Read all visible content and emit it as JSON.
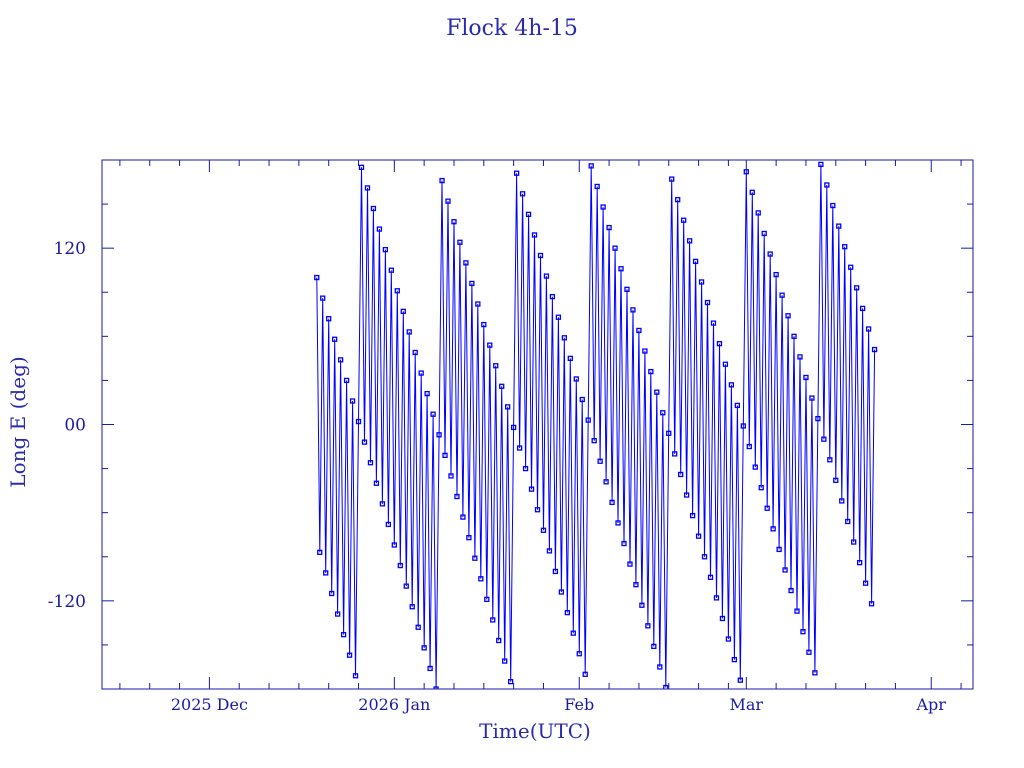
{
  "chart_data": {
    "type": "line",
    "title": "Flock 4h-15",
    "xlabel": "Time(UTC)",
    "ylabel": "Long E (deg)",
    "xlim": [
      "2025-11-13",
      "2026-04-08"
    ],
    "ylim": [
      -180,
      180
    ],
    "grid": false,
    "legend": "none",
    "markers": "square",
    "color": "#0000ff",
    "axis_color": "#1a1aa6",
    "y_ticks": [
      {
        "value": 120,
        "label": "120"
      },
      {
        "value": 0,
        "label": "00"
      },
      {
        "value": -120,
        "label": "-120"
      }
    ],
    "x_ticks": [
      {
        "date": "2025-12-01",
        "label": "2025 Dec"
      },
      {
        "date": "2026-01-01",
        "label": "2026 Jan"
      },
      {
        "date": "2026-02-01",
        "label": "Feb"
      },
      {
        "date": "2026-03-01",
        "label": "Mar"
      },
      {
        "date": "2026-04-01",
        "label": "Apr"
      }
    ],
    "sample_times_utc": [
      "00:00",
      "12:00"
    ],
    "points": [
      {
        "date": "2025-12-19",
        "lon": [
          100,
          -87
        ]
      },
      {
        "date": "2025-12-20",
        "lon": [
          86,
          -101
        ]
      },
      {
        "date": "2025-12-21",
        "lon": [
          72,
          -115
        ]
      },
      {
        "date": "2025-12-22",
        "lon": [
          58,
          -129
        ]
      },
      {
        "date": "2025-12-23",
        "lon": [
          44,
          -143
        ]
      },
      {
        "date": "2025-12-24",
        "lon": [
          30,
          -157
        ]
      },
      {
        "date": "2025-12-25",
        "lon": [
          16,
          -171
        ]
      },
      {
        "date": "2025-12-26",
        "lon": [
          2,
          175
        ]
      },
      {
        "date": "2025-12-27",
        "lon": [
          -12,
          161
        ]
      },
      {
        "date": "2025-12-28",
        "lon": [
          -26,
          147
        ]
      },
      {
        "date": "2025-12-29",
        "lon": [
          -40,
          133
        ]
      },
      {
        "date": "2025-12-30",
        "lon": [
          -54,
          119
        ]
      },
      {
        "date": "2025-12-31",
        "lon": [
          -68,
          105
        ]
      },
      {
        "date": "2026-01-01",
        "lon": [
          -82,
          91
        ]
      },
      {
        "date": "2026-01-02",
        "lon": [
          -96,
          77
        ]
      },
      {
        "date": "2026-01-03",
        "lon": [
          -110,
          63
        ]
      },
      {
        "date": "2026-01-04",
        "lon": [
          -124,
          49
        ]
      },
      {
        "date": "2026-01-05",
        "lon": [
          -138,
          35
        ]
      },
      {
        "date": "2026-01-06",
        "lon": [
          -152,
          21
        ]
      },
      {
        "date": "2026-01-07",
        "lon": [
          -166,
          7
        ]
      },
      {
        "date": "2026-01-08",
        "lon": [
          -180,
          -7
        ]
      },
      {
        "date": "2026-01-09",
        "lon": [
          166,
          -21
        ]
      },
      {
        "date": "2026-01-10",
        "lon": [
          152,
          -35
        ]
      },
      {
        "date": "2026-01-11",
        "lon": [
          138,
          -49
        ]
      },
      {
        "date": "2026-01-12",
        "lon": [
          124,
          -63
        ]
      },
      {
        "date": "2026-01-13",
        "lon": [
          110,
          -77
        ]
      },
      {
        "date": "2026-01-14",
        "lon": [
          96,
          -91
        ]
      },
      {
        "date": "2026-01-15",
        "lon": [
          82,
          -105
        ]
      },
      {
        "date": "2026-01-16",
        "lon": [
          68,
          -119
        ]
      },
      {
        "date": "2026-01-17",
        "lon": [
          54,
          -133
        ]
      },
      {
        "date": "2026-01-18",
        "lon": [
          40,
          -147
        ]
      },
      {
        "date": "2026-01-19",
        "lon": [
          26,
          -161
        ]
      },
      {
        "date": "2026-01-20",
        "lon": [
          12,
          -175
        ]
      },
      {
        "date": "2026-01-21",
        "lon": [
          -2,
          171
        ]
      },
      {
        "date": "2026-01-22",
        "lon": [
          -16,
          157
        ]
      },
      {
        "date": "2026-01-23",
        "lon": [
          -30,
          143
        ]
      },
      {
        "date": "2026-01-24",
        "lon": [
          -44,
          129
        ]
      },
      {
        "date": "2026-01-25",
        "lon": [
          -58,
          115
        ]
      },
      {
        "date": "2026-01-26",
        "lon": [
          -72,
          101
        ]
      },
      {
        "date": "2026-01-27",
        "lon": [
          -86,
          87
        ]
      },
      {
        "date": "2026-01-28",
        "lon": [
          -100,
          73
        ]
      },
      {
        "date": "2026-01-29",
        "lon": [
          -114,
          59
        ]
      },
      {
        "date": "2026-01-30",
        "lon": [
          -128,
          45
        ]
      },
      {
        "date": "2026-01-31",
        "lon": [
          -142,
          31
        ]
      },
      {
        "date": "2026-02-01",
        "lon": [
          -156,
          17
        ]
      },
      {
        "date": "2026-02-02",
        "lon": [
          -170,
          3
        ]
      },
      {
        "date": "2026-02-03",
        "lon": [
          176,
          -11
        ]
      },
      {
        "date": "2026-02-04",
        "lon": [
          162,
          -25
        ]
      },
      {
        "date": "2026-02-05",
        "lon": [
          148,
          -39
        ]
      },
      {
        "date": "2026-02-06",
        "lon": [
          134,
          -53
        ]
      },
      {
        "date": "2026-02-07",
        "lon": [
          120,
          -67
        ]
      },
      {
        "date": "2026-02-08",
        "lon": [
          106,
          -81
        ]
      },
      {
        "date": "2026-02-09",
        "lon": [
          92,
          -95
        ]
      },
      {
        "date": "2026-02-10",
        "lon": [
          78,
          -109
        ]
      },
      {
        "date": "2026-02-11",
        "lon": [
          64,
          -123
        ]
      },
      {
        "date": "2026-02-12",
        "lon": [
          50,
          -137
        ]
      },
      {
        "date": "2026-02-13",
        "lon": [
          36,
          -151
        ]
      },
      {
        "date": "2026-02-14",
        "lon": [
          22,
          -165
        ]
      },
      {
        "date": "2026-02-15",
        "lon": [
          8,
          -179
        ]
      },
      {
        "date": "2026-02-16",
        "lon": [
          -6,
          167
        ]
      },
      {
        "date": "2026-02-17",
        "lon": [
          -20,
          153
        ]
      },
      {
        "date": "2026-02-18",
        "lon": [
          -34,
          139
        ]
      },
      {
        "date": "2026-02-19",
        "lon": [
          -48,
          125
        ]
      },
      {
        "date": "2026-02-20",
        "lon": [
          -62,
          111
        ]
      },
      {
        "date": "2026-02-21",
        "lon": [
          -76,
          97
        ]
      },
      {
        "date": "2026-02-22",
        "lon": [
          -90,
          83
        ]
      },
      {
        "date": "2026-02-23",
        "lon": [
          -104,
          69
        ]
      },
      {
        "date": "2026-02-24",
        "lon": [
          -118,
          55
        ]
      },
      {
        "date": "2026-02-25",
        "lon": [
          -132,
          41
        ]
      },
      {
        "date": "2026-02-26",
        "lon": [
          -146,
          27
        ]
      },
      {
        "date": "2026-02-27",
        "lon": [
          -160,
          13
        ]
      },
      {
        "date": "2026-02-28",
        "lon": [
          -174,
          -1
        ]
      },
      {
        "date": "2026-03-01",
        "lon": [
          172,
          -15
        ]
      },
      {
        "date": "2026-03-02",
        "lon": [
          158,
          -29
        ]
      },
      {
        "date": "2026-03-03",
        "lon": [
          144,
          -43
        ]
      },
      {
        "date": "2026-03-04",
        "lon": [
          130,
          -57
        ]
      },
      {
        "date": "2026-03-05",
        "lon": [
          116,
          -71
        ]
      },
      {
        "date": "2026-03-06",
        "lon": [
          102,
          -85
        ]
      },
      {
        "date": "2026-03-07",
        "lon": [
          88,
          -99
        ]
      },
      {
        "date": "2026-03-08",
        "lon": [
          74,
          -113
        ]
      },
      {
        "date": "2026-03-09",
        "lon": [
          60,
          -127
        ]
      },
      {
        "date": "2026-03-10",
        "lon": [
          46,
          -141
        ]
      },
      {
        "date": "2026-03-11",
        "lon": [
          32,
          -155
        ]
      },
      {
        "date": "2026-03-12",
        "lon": [
          18,
          -169
        ]
      },
      {
        "date": "2026-03-13",
        "lon": [
          4,
          177
        ]
      },
      {
        "date": "2026-03-14",
        "lon": [
          -10,
          163
        ]
      },
      {
        "date": "2026-03-15",
        "lon": [
          -24,
          149
        ]
      },
      {
        "date": "2026-03-16",
        "lon": [
          -38,
          135
        ]
      },
      {
        "date": "2026-03-17",
        "lon": [
          -52,
          121
        ]
      },
      {
        "date": "2026-03-18",
        "lon": [
          -66,
          107
        ]
      },
      {
        "date": "2026-03-19",
        "lon": [
          -80,
          93
        ]
      },
      {
        "date": "2026-03-20",
        "lon": [
          -94,
          79
        ]
      },
      {
        "date": "2026-03-21",
        "lon": [
          -108,
          65
        ]
      },
      {
        "date": "2026-03-22",
        "lon": [
          -122,
          51
        ]
      }
    ]
  }
}
